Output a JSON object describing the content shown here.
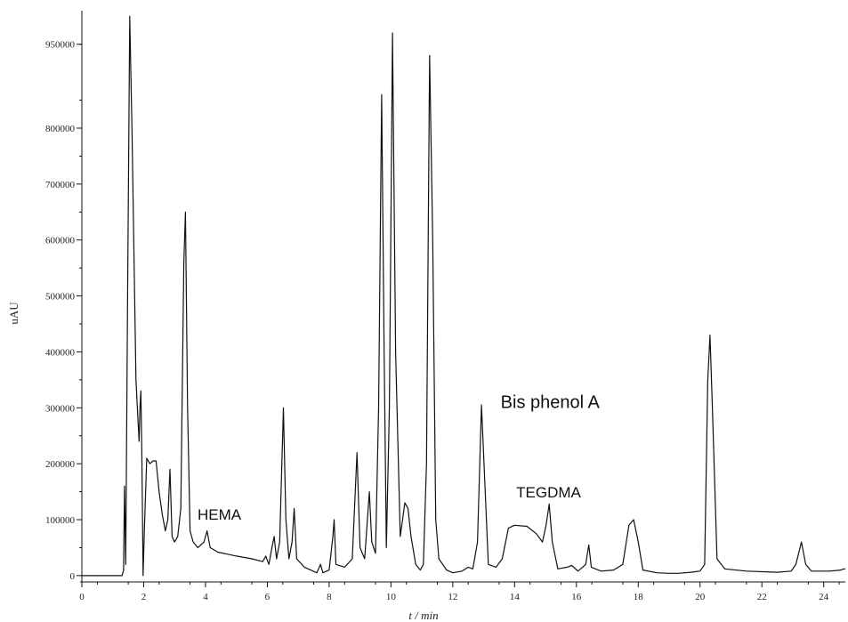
{
  "chart_data": {
    "type": "line",
    "title": "",
    "xlabel": "t / min",
    "ylabel": "uAU",
    "xlim": [
      0,
      24.7
    ],
    "ylim": [
      -5000,
      1010000
    ],
    "x_ticks": [
      0,
      2,
      4,
      6,
      8,
      10,
      12,
      14,
      16,
      18,
      20,
      22,
      24
    ],
    "y_ticks": [
      0,
      100000,
      200000,
      300000,
      400000,
      500000,
      600000,
      700000,
      800000,
      950000
    ],
    "grid": false,
    "legend": "none",
    "line_color": "#111111",
    "series": [
      {
        "points": [
          [
            0,
            0
          ],
          [
            1.3,
            0
          ],
          [
            1.35,
            10000
          ],
          [
            1.38,
            160000
          ],
          [
            1.42,
            20000
          ],
          [
            1.48,
            500000
          ],
          [
            1.55,
            1000000
          ],
          [
            1.62,
            800000
          ],
          [
            1.75,
            350000
          ],
          [
            1.85,
            240000
          ],
          [
            1.88,
            300000
          ],
          [
            1.91,
            330000
          ],
          [
            1.94,
            220000
          ],
          [
            1.98,
            0
          ],
          [
            2.02,
            80000
          ],
          [
            2.1,
            210000
          ],
          [
            2.2,
            200000
          ],
          [
            2.3,
            205000
          ],
          [
            2.4,
            205000
          ],
          [
            2.5,
            150000
          ],
          [
            2.6,
            110000
          ],
          [
            2.7,
            80000
          ],
          [
            2.78,
            100000
          ],
          [
            2.85,
            190000
          ],
          [
            2.92,
            70000
          ],
          [
            3.0,
            60000
          ],
          [
            3.1,
            70000
          ],
          [
            3.2,
            120000
          ],
          [
            3.3,
            560000
          ],
          [
            3.35,
            650000
          ],
          [
            3.42,
            300000
          ],
          [
            3.5,
            80000
          ],
          [
            3.6,
            60000
          ],
          [
            3.75,
            50000
          ],
          [
            3.85,
            55000
          ],
          [
            3.95,
            60000
          ],
          [
            4.05,
            80000
          ],
          [
            4.15,
            50000
          ],
          [
            4.4,
            42000
          ],
          [
            5.0,
            35000
          ],
          [
            5.5,
            30000
          ],
          [
            5.85,
            25000
          ],
          [
            5.95,
            35000
          ],
          [
            6.05,
            20000
          ],
          [
            6.15,
            50000
          ],
          [
            6.22,
            70000
          ],
          [
            6.3,
            30000
          ],
          [
            6.4,
            60000
          ],
          [
            6.52,
            300000
          ],
          [
            6.6,
            100000
          ],
          [
            6.7,
            30000
          ],
          [
            6.8,
            60000
          ],
          [
            6.87,
            120000
          ],
          [
            6.95,
            30000
          ],
          [
            7.2,
            15000
          ],
          [
            7.4,
            10000
          ],
          [
            7.6,
            5000
          ],
          [
            7.72,
            20000
          ],
          [
            7.8,
            5000
          ],
          [
            8.0,
            10000
          ],
          [
            8.12,
            70000
          ],
          [
            8.16,
            100000
          ],
          [
            8.22,
            20000
          ],
          [
            8.5,
            15000
          ],
          [
            8.75,
            30000
          ],
          [
            8.9,
            220000
          ],
          [
            9.0,
            50000
          ],
          [
            9.15,
            30000
          ],
          [
            9.3,
            150000
          ],
          [
            9.38,
            60000
          ],
          [
            9.5,
            40000
          ],
          [
            9.6,
            300000
          ],
          [
            9.7,
            860000
          ],
          [
            9.78,
            400000
          ],
          [
            9.85,
            50000
          ],
          [
            9.95,
            300000
          ],
          [
            10.05,
            970000
          ],
          [
            10.15,
            400000
          ],
          [
            10.3,
            70000
          ],
          [
            10.45,
            130000
          ],
          [
            10.55,
            120000
          ],
          [
            10.65,
            70000
          ],
          [
            10.8,
            20000
          ],
          [
            10.95,
            10000
          ],
          [
            11.05,
            20000
          ],
          [
            11.15,
            200000
          ],
          [
            11.25,
            930000
          ],
          [
            11.35,
            600000
          ],
          [
            11.45,
            100000
          ],
          [
            11.55,
            30000
          ],
          [
            11.8,
            10000
          ],
          [
            12.0,
            5000
          ],
          [
            12.3,
            8000
          ],
          [
            12.5,
            15000
          ],
          [
            12.65,
            12000
          ],
          [
            12.8,
            60000
          ],
          [
            12.93,
            305000
          ],
          [
            13.05,
            150000
          ],
          [
            13.15,
            20000
          ],
          [
            13.4,
            15000
          ],
          [
            13.6,
            30000
          ],
          [
            13.8,
            85000
          ],
          [
            14.0,
            90000
          ],
          [
            14.4,
            88000
          ],
          [
            14.7,
            75000
          ],
          [
            14.9,
            60000
          ],
          [
            15.02,
            90000
          ],
          [
            15.12,
            128000
          ],
          [
            15.22,
            60000
          ],
          [
            15.4,
            12000
          ],
          [
            15.7,
            15000
          ],
          [
            15.85,
            18000
          ],
          [
            16.05,
            8000
          ],
          [
            16.2,
            15000
          ],
          [
            16.3,
            20000
          ],
          [
            16.4,
            55000
          ],
          [
            16.48,
            15000
          ],
          [
            16.8,
            8000
          ],
          [
            17.2,
            10000
          ],
          [
            17.5,
            20000
          ],
          [
            17.7,
            90000
          ],
          [
            17.85,
            100000
          ],
          [
            18.0,
            60000
          ],
          [
            18.15,
            10000
          ],
          [
            18.6,
            5000
          ],
          [
            19.0,
            4000
          ],
          [
            19.3,
            4000
          ],
          [
            19.7,
            6000
          ],
          [
            20.0,
            8000
          ],
          [
            20.15,
            20000
          ],
          [
            20.25,
            350000
          ],
          [
            20.32,
            430000
          ],
          [
            20.4,
            300000
          ],
          [
            20.55,
            30000
          ],
          [
            20.8,
            12000
          ],
          [
            21.5,
            8000
          ],
          [
            22.5,
            6000
          ],
          [
            22.95,
            8000
          ],
          [
            23.1,
            20000
          ],
          [
            23.28,
            60000
          ],
          [
            23.42,
            20000
          ],
          [
            23.6,
            8000
          ],
          [
            24.2,
            8000
          ],
          [
            24.55,
            10000
          ],
          [
            24.65,
            12000
          ],
          [
            24.7,
            12000
          ]
        ]
      }
    ],
    "annotations": [
      {
        "text": "HEMA",
        "x": 4.45,
        "y": 100000,
        "size": "small"
      },
      {
        "text": "Bis phenol A",
        "x": 15.15,
        "y": 300000,
        "size": "large"
      },
      {
        "text": "TEGDMA",
        "x": 15.1,
        "y": 140000,
        "size": "small"
      }
    ]
  }
}
